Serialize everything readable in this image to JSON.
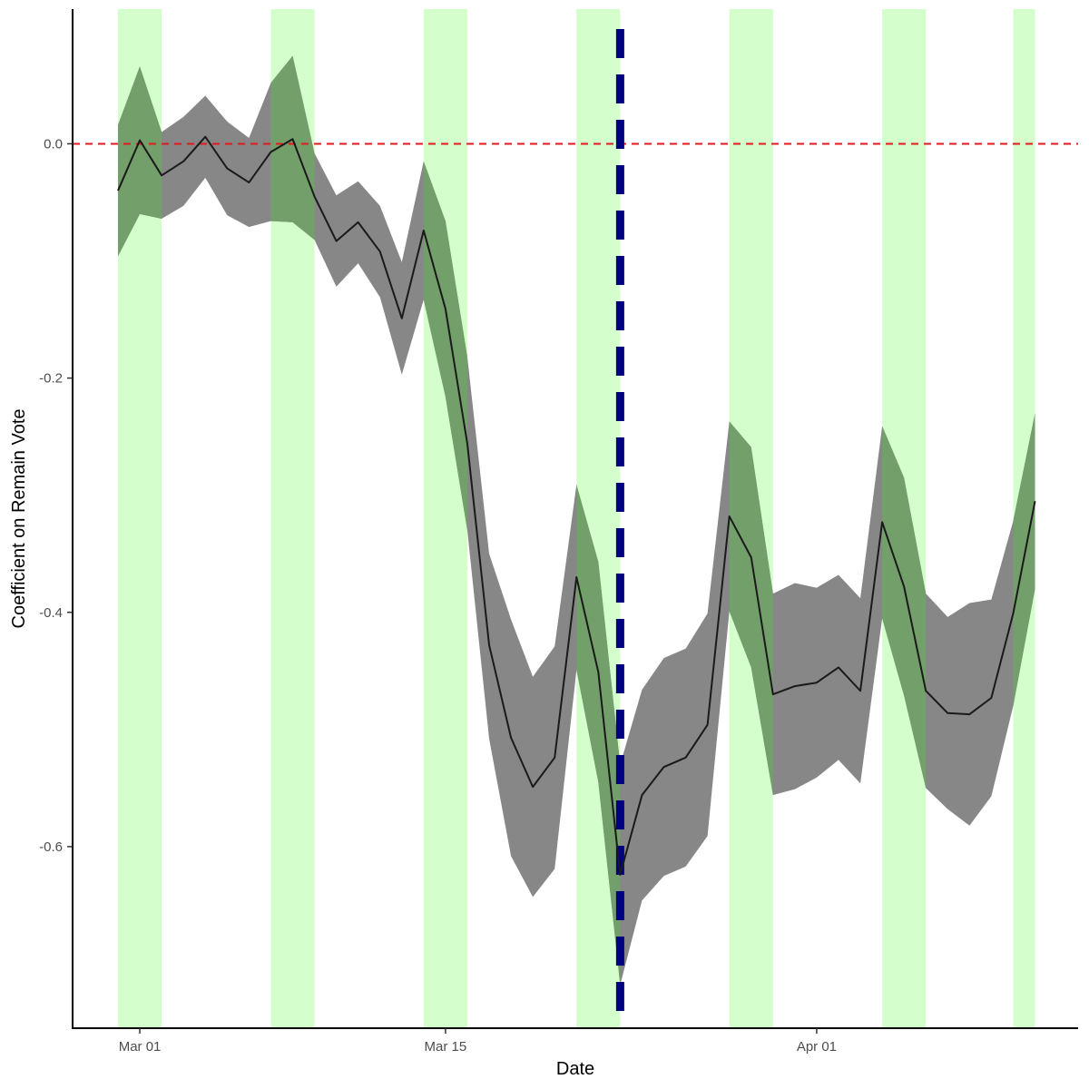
{
  "chart_data": {
    "type": "line",
    "title": "",
    "xlabel": "Date",
    "ylabel": "Coefficient on Remain Vote",
    "x_ticks": [
      "Mar 01",
      "Mar 15",
      "Apr 01"
    ],
    "y_ticks": [
      "0.0",
      "-0.2",
      "-0.4",
      "-0.6"
    ],
    "ylim": [
      -0.755,
      0.115
    ],
    "grid": false,
    "series": [
      {
        "values": [
          {
            "date": "Feb 28",
            "y": -0.04,
            "lo": -0.096,
            "hi": 0.016
          },
          {
            "date": "Mar 01",
            "y": 0.003,
            "lo": -0.06,
            "hi": 0.066
          },
          {
            "date": "Mar 02",
            "y": -0.027,
            "lo": -0.064,
            "hi": 0.01
          },
          {
            "date": "Mar 03",
            "y": -0.015,
            "lo": -0.053,
            "hi": 0.023
          },
          {
            "date": "Mar 04",
            "y": 0.006,
            "lo": -0.029,
            "hi": 0.041
          },
          {
            "date": "Mar 05",
            "y": -0.021,
            "lo": -0.061,
            "hi": 0.019
          },
          {
            "date": "Mar 06",
            "y": -0.033,
            "lo": -0.071,
            "hi": 0.005
          },
          {
            "date": "Mar 07",
            "y": -0.007,
            "lo": -0.066,
            "hi": 0.052
          },
          {
            "date": "Mar 08",
            "y": 0.004,
            "lo": -0.067,
            "hi": 0.075
          },
          {
            "date": "Mar 09",
            "y": -0.045,
            "lo": -0.082,
            "hi": -0.008
          },
          {
            "date": "Mar 10",
            "y": -0.083,
            "lo": -0.122,
            "hi": -0.044
          },
          {
            "date": "Mar 11",
            "y": -0.067,
            "lo": -0.102,
            "hi": -0.032
          },
          {
            "date": "Mar 12",
            "y": -0.092,
            "lo": -0.131,
            "hi": -0.053
          },
          {
            "date": "Mar 13",
            "y": -0.149,
            "lo": -0.197,
            "hi": -0.101
          },
          {
            "date": "Mar 14",
            "y": -0.074,
            "lo": -0.133,
            "hi": -0.015
          },
          {
            "date": "Mar 15",
            "y": -0.141,
            "lo": -0.216,
            "hi": -0.066
          },
          {
            "date": "Mar 16",
            "y": -0.256,
            "lo": -0.33,
            "hi": -0.182
          },
          {
            "date": "Mar 17",
            "y": -0.428,
            "lo": -0.508,
            "hi": -0.35
          },
          {
            "date": "Mar 18",
            "y": -0.507,
            "lo": -0.608,
            "hi": -0.406
          },
          {
            "date": "Mar 19",
            "y": -0.549,
            "lo": -0.643,
            "hi": -0.455
          },
          {
            "date": "Mar 20",
            "y": -0.524,
            "lo": -0.619,
            "hi": -0.429
          },
          {
            "date": "Mar 21",
            "y": -0.37,
            "lo": -0.449,
            "hi": -0.291
          },
          {
            "date": "Mar 22",
            "y": -0.451,
            "lo": -0.545,
            "hi": -0.357
          },
          {
            "date": "Mar 23",
            "y": -0.624,
            "lo": -0.718,
            "hi": -0.53
          },
          {
            "date": "Mar 24",
            "y": -0.556,
            "lo": -0.646,
            "hi": -0.466
          },
          {
            "date": "Mar 25",
            "y": -0.532,
            "lo": -0.625,
            "hi": -0.439
          },
          {
            "date": "Mar 26",
            "y": -0.524,
            "lo": -0.617,
            "hi": -0.431
          },
          {
            "date": "Mar 27",
            "y": -0.496,
            "lo": -0.591,
            "hi": -0.401
          },
          {
            "date": "Mar 28",
            "y": -0.318,
            "lo": -0.399,
            "hi": -0.237
          },
          {
            "date": "Mar 29",
            "y": -0.353,
            "lo": -0.447,
            "hi": -0.259
          },
          {
            "date": "Mar 30",
            "y": -0.47,
            "lo": -0.556,
            "hi": -0.384
          },
          {
            "date": "Mar 31",
            "y": -0.463,
            "lo": -0.551,
            "hi": -0.375
          },
          {
            "date": "Apr 01",
            "y": -0.46,
            "lo": -0.541,
            "hi": -0.379
          },
          {
            "date": "Apr 02",
            "y": -0.447,
            "lo": -0.526,
            "hi": -0.368
          },
          {
            "date": "Apr 03",
            "y": -0.467,
            "lo": -0.546,
            "hi": -0.388
          },
          {
            "date": "Apr 04",
            "y": -0.323,
            "lo": -0.405,
            "hi": -0.241
          },
          {
            "date": "Apr 05",
            "y": -0.378,
            "lo": -0.471,
            "hi": -0.285
          },
          {
            "date": "Apr 06",
            "y": -0.467,
            "lo": -0.55,
            "hi": -0.384
          },
          {
            "date": "Apr 07",
            "y": -0.486,
            "lo": -0.568,
            "hi": -0.404
          },
          {
            "date": "Apr 08",
            "y": -0.487,
            "lo": -0.582,
            "hi": -0.392
          },
          {
            "date": "Apr 09",
            "y": -0.473,
            "lo": -0.557,
            "hi": -0.389
          },
          {
            "date": "Apr 10",
            "y": -0.401,
            "lo": -0.48,
            "hi": -0.322
          },
          {
            "date": "Apr 11",
            "y": -0.305,
            "lo": -0.38,
            "hi": -0.23
          }
        ]
      }
    ],
    "highlight_ranges": [
      [
        "Feb 28",
        "Mar 02"
      ],
      [
        "Mar 07",
        "Mar 09"
      ],
      [
        "Mar 14",
        "Mar 16"
      ],
      [
        "Mar 21",
        "Mar 23"
      ],
      [
        "Mar 28",
        "Mar 30"
      ],
      [
        "Apr 04",
        "Apr 06"
      ],
      [
        "Apr 10",
        "Apr 11"
      ]
    ],
    "reference_lines": [
      {
        "orientation": "horizontal",
        "y": 0.0,
        "style": "dashed",
        "color": "#e31a1c"
      },
      {
        "orientation": "vertical",
        "date": "Mar 23",
        "style": "dashed",
        "color": "#000080"
      }
    ],
    "colors": {
      "line": "#1a1a1a",
      "ribbon": "#878787",
      "highlight": "#d4ffcc",
      "overlap": "#739f6b"
    }
  }
}
